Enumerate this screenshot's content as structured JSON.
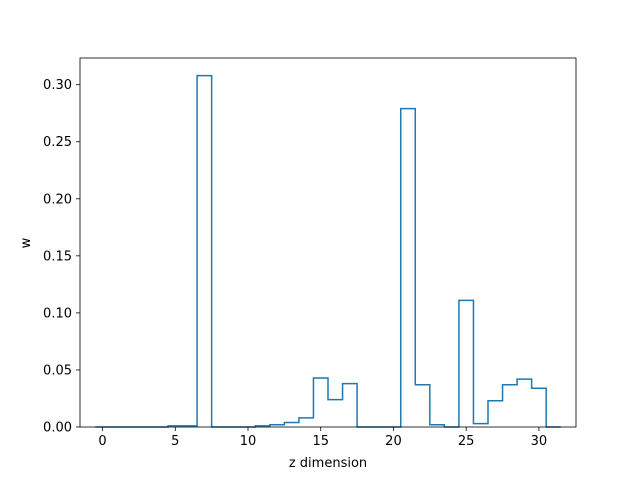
{
  "chart_data": {
    "type": "step-histogram",
    "title": "",
    "xlabel": "z dimension",
    "ylabel": "w",
    "xlim": [
      -1.55,
      32.55
    ],
    "ylim": [
      0.0,
      0.3234
    ],
    "xticks": [
      0,
      5,
      10,
      15,
      20,
      25,
      30
    ],
    "xtick_labels": [
      "0",
      "5",
      "10",
      "15",
      "20",
      "25",
      "30"
    ],
    "yticks": [
      0.0,
      0.05,
      0.1,
      0.15,
      0.2,
      0.25,
      0.3
    ],
    "ytick_labels": [
      "0.00",
      "0.05",
      "0.10",
      "0.15",
      "0.20",
      "0.25",
      "0.30"
    ],
    "bin_edges": [
      0,
      1,
      2,
      3,
      4,
      5,
      6,
      7,
      8,
      9,
      10,
      11,
      12,
      13,
      14,
      15,
      16,
      17,
      18,
      19,
      20,
      21,
      22,
      23,
      24,
      25,
      26,
      27,
      28,
      29,
      30,
      31
    ],
    "bin_width": 1.0,
    "bin_start": -0.5,
    "values": [
      0.0,
      0.0,
      0.0,
      0.0,
      0.0,
      0.001,
      0.001,
      0.308,
      0.0,
      0.0,
      0.0,
      0.001,
      0.002,
      0.004,
      0.008,
      0.043,
      0.024,
      0.038,
      0.0,
      0.0,
      0.0,
      0.279,
      0.037,
      0.002,
      0.0,
      0.111,
      0.003,
      0.023,
      0.037,
      0.042,
      0.034,
      0.0
    ],
    "series_color": "#1f77b4",
    "grid": false,
    "legend": "none"
  }
}
